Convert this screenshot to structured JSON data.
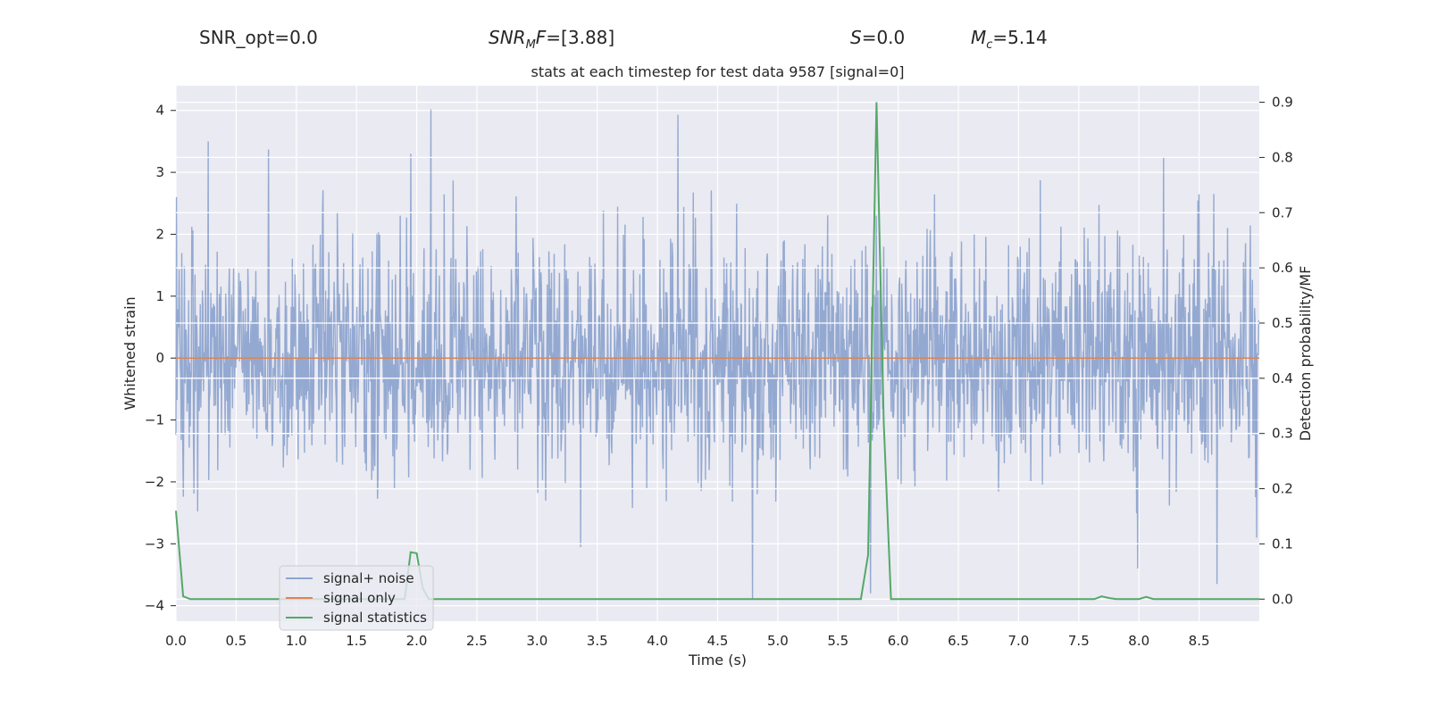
{
  "header": {
    "snr_opt": "SNR_opt=0.0",
    "snr_mf_var": "SNR",
    "snr_mf_sub": "M",
    "snr_mf_var2": "F",
    "snr_mf_value": "=[3.88]",
    "s_var": "S",
    "s_value": "=0.0",
    "mc_var": "M",
    "mc_sub": "c",
    "mc_value": "=5.14"
  },
  "colors": {
    "background": "#eaeaf2",
    "grid": "#ffffff",
    "signal_noise": "#8fa5cf",
    "signal_only": "#dd8452",
    "signal_statistics": "#55a868",
    "text": "#262626"
  },
  "chart_data": {
    "type": "line",
    "title": "stats at each timestep for test data 9587 [signal=0]",
    "xlabel": "Time (s)",
    "ylabel": "Whitened strain",
    "y2label": "Detection probability/MF",
    "xlim": [
      0,
      9
    ],
    "ylim": [
      -4.25,
      4.4
    ],
    "y2lim": [
      -0.04,
      0.93
    ],
    "xticks": [
      "0.0",
      "0.5",
      "1.0",
      "1.5",
      "2.0",
      "2.5",
      "3.0",
      "3.5",
      "4.0",
      "4.5",
      "5.0",
      "5.5",
      "6.0",
      "6.5",
      "7.0",
      "7.5",
      "8.0",
      "8.5"
    ],
    "yticks": [
      "4",
      "3",
      "2",
      "1",
      "0",
      "−1",
      "−2",
      "−3",
      "−4"
    ],
    "y2ticks": [
      "0.9",
      "0.8",
      "0.7",
      "0.6",
      "0.5",
      "0.4",
      "0.3",
      "0.2",
      "0.1",
      "0.0"
    ],
    "grid": true,
    "legend_position": "lower-left",
    "series": [
      {
        "name": "signal+ noise",
        "axis": "left",
        "noise_std": 0.95,
        "n_samples": 2048,
        "peaks": [
          [
            0.27,
            3.5
          ],
          [
            0.77,
            3.37
          ],
          [
            2.12,
            4.02
          ],
          [
            4.17,
            3.93
          ],
          [
            1.95,
            3.3
          ],
          [
            5.82,
            2.3
          ],
          [
            4.79,
            -3.9
          ],
          [
            5.77,
            -3.8
          ],
          [
            8.98,
            -2.9
          ],
          [
            7.99,
            -3.4
          ],
          [
            8.65,
            -3.65
          ]
        ]
      },
      {
        "name": "signal only",
        "axis": "left",
        "x": [
          0,
          9
        ],
        "y": [
          0,
          0
        ]
      },
      {
        "name": "signal statistics",
        "axis": "right",
        "x": [
          0.0,
          0.06,
          0.12,
          1.84,
          1.9,
          1.95,
          2.0,
          2.05,
          2.1,
          2.15,
          5.69,
          5.75,
          5.82,
          5.88,
          5.94,
          6.0,
          7.63,
          7.69,
          7.75,
          7.81,
          7.88,
          8.0,
          8.06,
          8.12,
          8.19,
          9.0
        ],
        "y": [
          0.16,
          0.005,
          0.0,
          0.0,
          0.0,
          0.085,
          0.083,
          0.02,
          0.0,
          0.0,
          0.0,
          0.08,
          0.9,
          0.32,
          0.0,
          0.0,
          0.0,
          0.005,
          0.002,
          0.0,
          0.0,
          0.0,
          0.004,
          0.0,
          0.0,
          0.0
        ]
      }
    ]
  }
}
